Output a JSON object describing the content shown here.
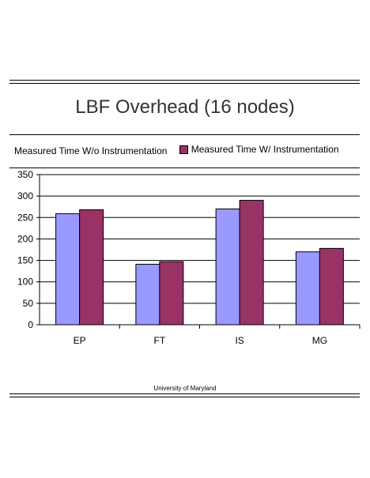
{
  "title": "LBF  Overhead (16 nodes)",
  "footer": "University of Maryland",
  "colors": {
    "series1": "#9999FF",
    "series2": "#993366"
  },
  "chart_data": {
    "type": "bar",
    "title": "LBF  Overhead (16 nodes)",
    "categories": [
      "EP",
      "FT",
      "IS",
      "MG"
    ],
    "series": [
      {
        "name": "Measured Time W/o Instrumentation",
        "values": [
          259,
          141,
          270,
          170
        ]
      },
      {
        "name": "Measured Time W/ Instrumentation",
        "values": [
          268,
          147,
          290,
          178
        ]
      }
    ],
    "ylim": [
      0,
      350
    ],
    "yticks": [
      0,
      50,
      100,
      150,
      200,
      250,
      300,
      350
    ],
    "grid": true,
    "legend": "top"
  }
}
